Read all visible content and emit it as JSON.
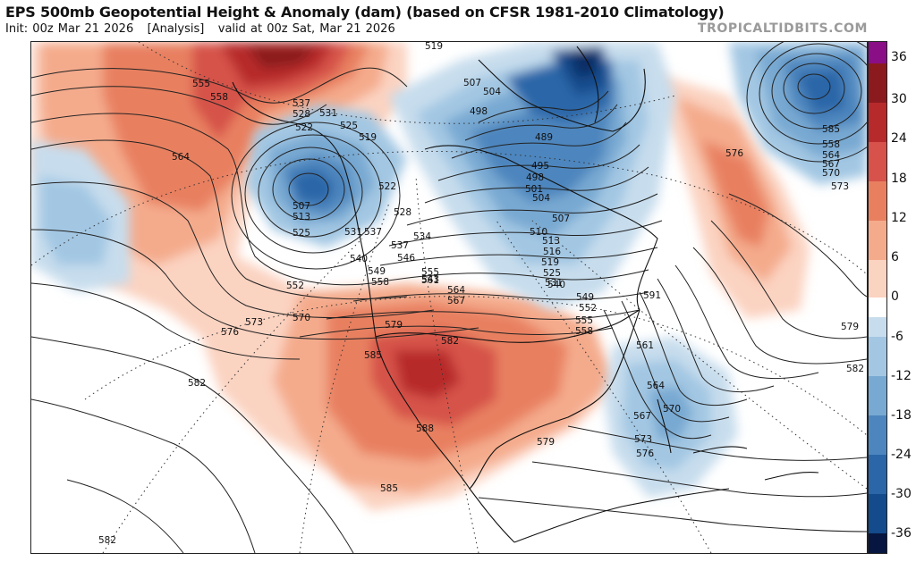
{
  "header": {
    "title": "EPS 500mb Geopotential Height & Anomaly (dam) (based on CFSR 1981-2010 Climatology)",
    "init_label": "Init: 00z Mar 21 2026",
    "analysis_label": "[Analysis]",
    "valid_label": "valid at 00z Sat, Mar 21 2026",
    "brand": "TROPICALTIDBITS.COM"
  },
  "colorbar": {
    "ticks": [
      "36",
      "30",
      "24",
      "18",
      "12",
      "6",
      "0",
      "-6",
      "-12",
      "-18",
      "-24",
      "-30",
      "-36"
    ],
    "colors": {
      "purple": "#8a0f86",
      "r5": "#8b1a1f",
      "r4": "#b72a2c",
      "r3": "#d6524a",
      "r2": "#e88060",
      "r1": "#f4ab8c",
      "r0": "#fbd3c1",
      "white": "#ffffff",
      "b0": "#c7dded",
      "b1": "#a3c7e3",
      "b2": "#78a9d2",
      "b3": "#4d86be",
      "b4": "#2a66a8",
      "b5": "#134b8c",
      "b6": "#0a2d66",
      "b7": "#061640"
    }
  },
  "map": {
    "projection": "polar stereographic",
    "contour_labels": [
      "519",
      "555",
      "558",
      "537",
      "528",
      "531",
      "525",
      "522",
      "519",
      "564",
      "507",
      "513",
      "525",
      "531",
      "522",
      "528",
      "507",
      "504",
      "498",
      "489",
      "495",
      "498",
      "501",
      "504",
      "507",
      "510",
      "513",
      "516",
      "519",
      "525",
      "531",
      "537",
      "540",
      "549",
      "552",
      "555",
      "558",
      "534",
      "537",
      "540",
      "543",
      "546",
      "549",
      "552",
      "555",
      "558",
      "561",
      "564",
      "567",
      "570",
      "573",
      "576",
      "579",
      "582",
      "585",
      "588",
      "591",
      "561",
      "564",
      "567",
      "570",
      "573",
      "576",
      "579",
      "582",
      "585",
      "558",
      "564",
      "567",
      "570",
      "573",
      "576",
      "579",
      "582",
      "585",
      "582",
      "588",
      "585"
    ]
  }
}
